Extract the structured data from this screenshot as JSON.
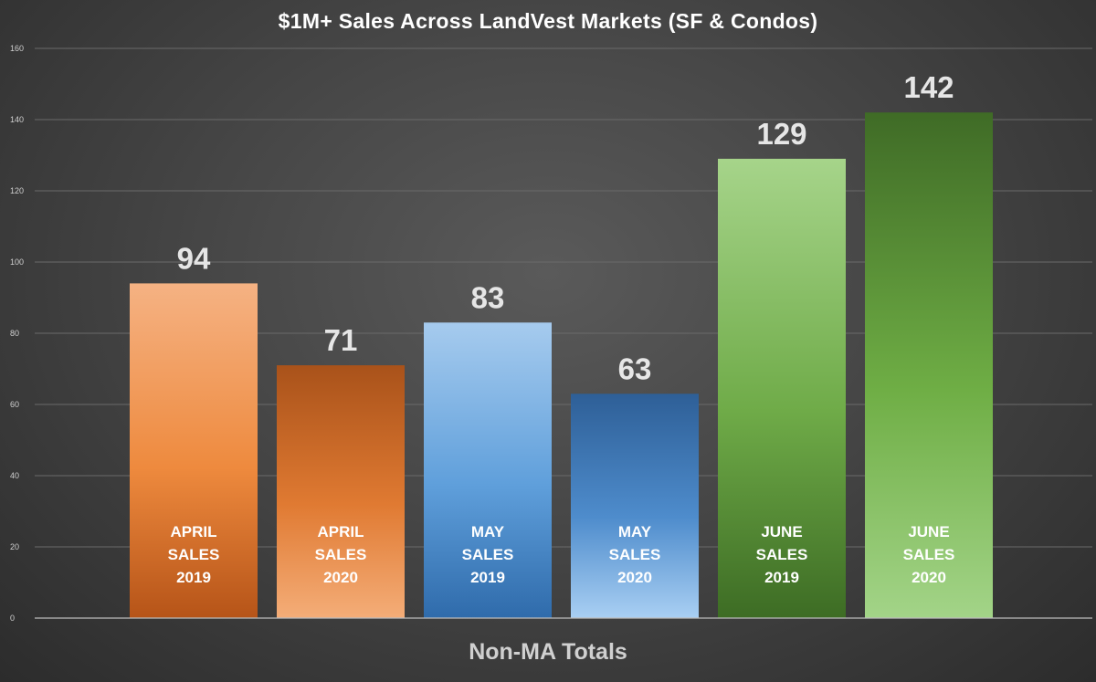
{
  "chart_data": {
    "type": "bar",
    "title": "$1M+ Sales Across LandVest Markets (SF & Condos)",
    "xlabel": "Non-MA Totals",
    "ylabel": "",
    "ylim": [
      0,
      160
    ],
    "yticks": [
      0,
      20,
      40,
      60,
      80,
      100,
      120,
      140,
      160
    ],
    "grid": true,
    "categories": [
      [
        "APRIL",
        "SALES",
        "2019"
      ],
      [
        "APRIL",
        "SALES",
        "2020"
      ],
      [
        "MAY",
        "SALES",
        "2019"
      ],
      [
        "MAY",
        "SALES",
        "2020"
      ],
      [
        "JUNE",
        "SALES",
        "2019"
      ],
      [
        "JUNE",
        "SALES",
        "2020"
      ]
    ],
    "values": [
      94,
      71,
      83,
      63,
      129,
      142
    ],
    "bar_colors": [
      {
        "top": "#f5b283",
        "mid": "#ee8a3e",
        "bottom": "#b65418"
      },
      {
        "top": "#a9521a",
        "mid": "#e07a32",
        "bottom": "#f4ad78"
      },
      {
        "top": "#a6cbee",
        "mid": "#5f9fdb",
        "bottom": "#2f6bab"
      },
      {
        "top": "#2e5f97",
        "mid": "#4e8ccc",
        "bottom": "#a9cff3"
      },
      {
        "top": "#a6d48a",
        "mid": "#6fab48",
        "bottom": "#3d6c24"
      },
      {
        "top": "#3f6b26",
        "mid": "#6fae45",
        "bottom": "#a3d488"
      }
    ]
  }
}
